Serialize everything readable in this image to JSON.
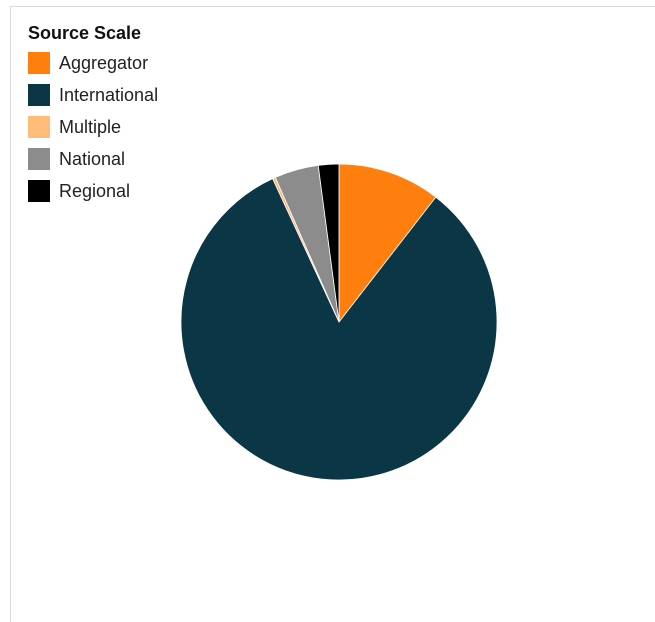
{
  "chart_data": {
    "type": "pie",
    "title": "",
    "legend_title": "Source Scale",
    "legend_position": "top-left",
    "slices": [
      {
        "label": "Aggregator",
        "value": 10.5,
        "color": "#ff7f0e"
      },
      {
        "label": "International",
        "value": 82.6,
        "color": "#0b3646"
      },
      {
        "label": "Multiple",
        "value": 0.3,
        "color": "#ffbb78"
      },
      {
        "label": "National",
        "value": 4.5,
        "color": "#8c8c8c"
      },
      {
        "label": "Regional",
        "value": 2.1,
        "color": "#000000"
      }
    ]
  }
}
